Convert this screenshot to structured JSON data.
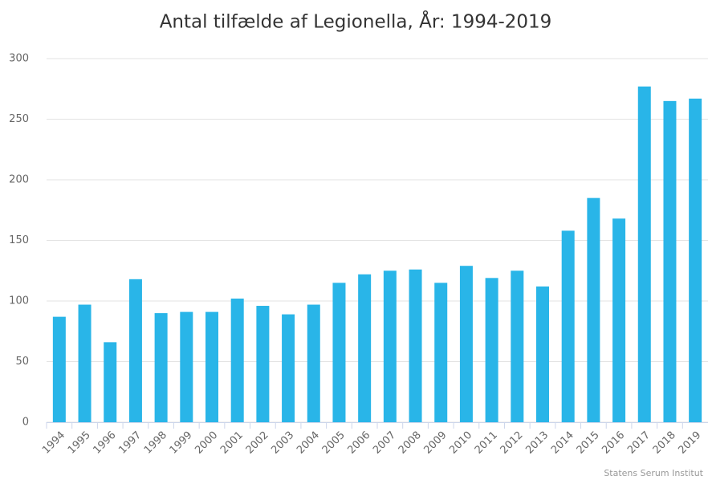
{
  "chart_data": {
    "type": "bar",
    "title": "Antal tilfælde af Legionella, År: 1994-2019",
    "source": "Statens Serum Institut",
    "categories": [
      "1994",
      "1995",
      "1996",
      "1997",
      "1998",
      "1999",
      "2000",
      "2001",
      "2002",
      "2003",
      "2004",
      "2005",
      "2006",
      "2007",
      "2008",
      "2009",
      "2010",
      "2011",
      "2012",
      "2013",
      "2014",
      "2015",
      "2016",
      "2017",
      "2018",
      "2019"
    ],
    "values": [
      87,
      97,
      66,
      118,
      90,
      91,
      91,
      102,
      96,
      89,
      97,
      115,
      122,
      125,
      126,
      115,
      129,
      119,
      125,
      112,
      158,
      185,
      168,
      277,
      265,
      267
    ],
    "color": "#29b5e8",
    "ylim": [
      0,
      300
    ],
    "yticks": [
      0,
      50,
      100,
      150,
      200,
      250,
      300
    ],
    "grid": true
  }
}
